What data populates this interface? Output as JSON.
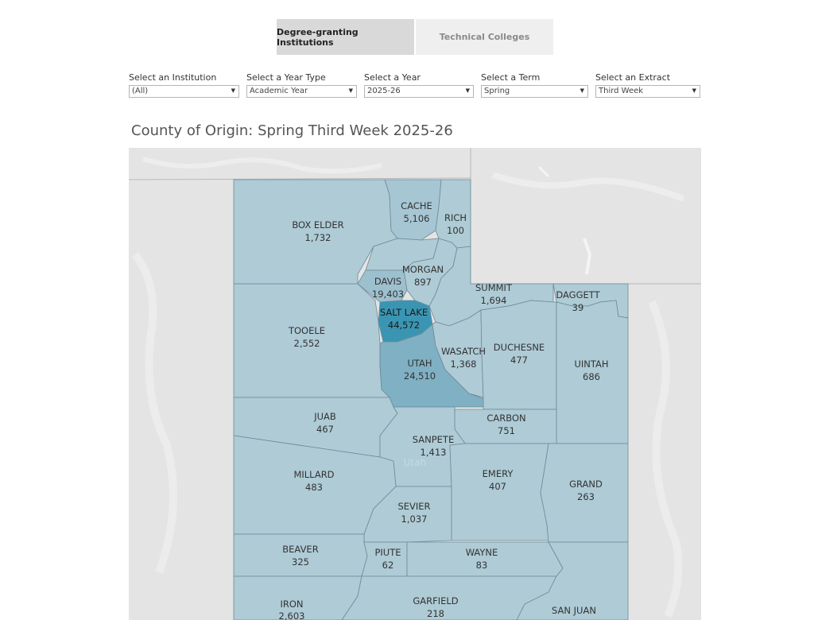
{
  "tabs": [
    {
      "label": "Degree-granting Institutions",
      "active": true
    },
    {
      "label": "Technical Colleges",
      "active": false
    }
  ],
  "filters": [
    {
      "label": "Select an Institution",
      "value": "(All)"
    },
    {
      "label": "Select a Year Type",
      "value": "Academic Year"
    },
    {
      "label": "Select a Year",
      "value": "2025-26"
    },
    {
      "label": "Select a Term",
      "value": "Spring"
    },
    {
      "label": "Select an Extract",
      "value": "Third Week"
    }
  ],
  "map": {
    "title": "County of Origin: Spring Third Week 2025-26",
    "state_watermark": "Utah",
    "counties": [
      {
        "name": "CACHE",
        "value": "5,106"
      },
      {
        "name": "RICH",
        "value": "100"
      },
      {
        "name": "BOX ELDER",
        "value": "1,732"
      },
      {
        "name": "MORGAN",
        "value": "897"
      },
      {
        "name": "DAVIS",
        "value": "19,403"
      },
      {
        "name": "SUMMIT",
        "value": "1,694"
      },
      {
        "name": "DAGGETT",
        "value": "39"
      },
      {
        "name": "SALT LAKE",
        "value": "44,572"
      },
      {
        "name": "TOOELE",
        "value": "2,552"
      },
      {
        "name": "WASATCH",
        "value": "1,368"
      },
      {
        "name": "DUCHESNE",
        "value": "477"
      },
      {
        "name": "UTAH",
        "value": "24,510"
      },
      {
        "name": "UINTAH",
        "value": "686"
      },
      {
        "name": "JUAB",
        "value": "467"
      },
      {
        "name": "CARBON",
        "value": "751"
      },
      {
        "name": "SANPETE",
        "value": "1,413"
      },
      {
        "name": "MILLARD",
        "value": "483"
      },
      {
        "name": "EMERY",
        "value": "407"
      },
      {
        "name": "GRAND",
        "value": "263"
      },
      {
        "name": "SEVIER",
        "value": "1,037"
      },
      {
        "name": "BEAVER",
        "value": "325"
      },
      {
        "name": "PIUTE",
        "value": "62"
      },
      {
        "name": "WAYNE",
        "value": "83"
      },
      {
        "name": "IRON",
        "value": "2,603"
      },
      {
        "name": "GARFIELD",
        "value": "218"
      },
      {
        "name": "SAN JUAN",
        "value": ""
      }
    ]
  }
}
